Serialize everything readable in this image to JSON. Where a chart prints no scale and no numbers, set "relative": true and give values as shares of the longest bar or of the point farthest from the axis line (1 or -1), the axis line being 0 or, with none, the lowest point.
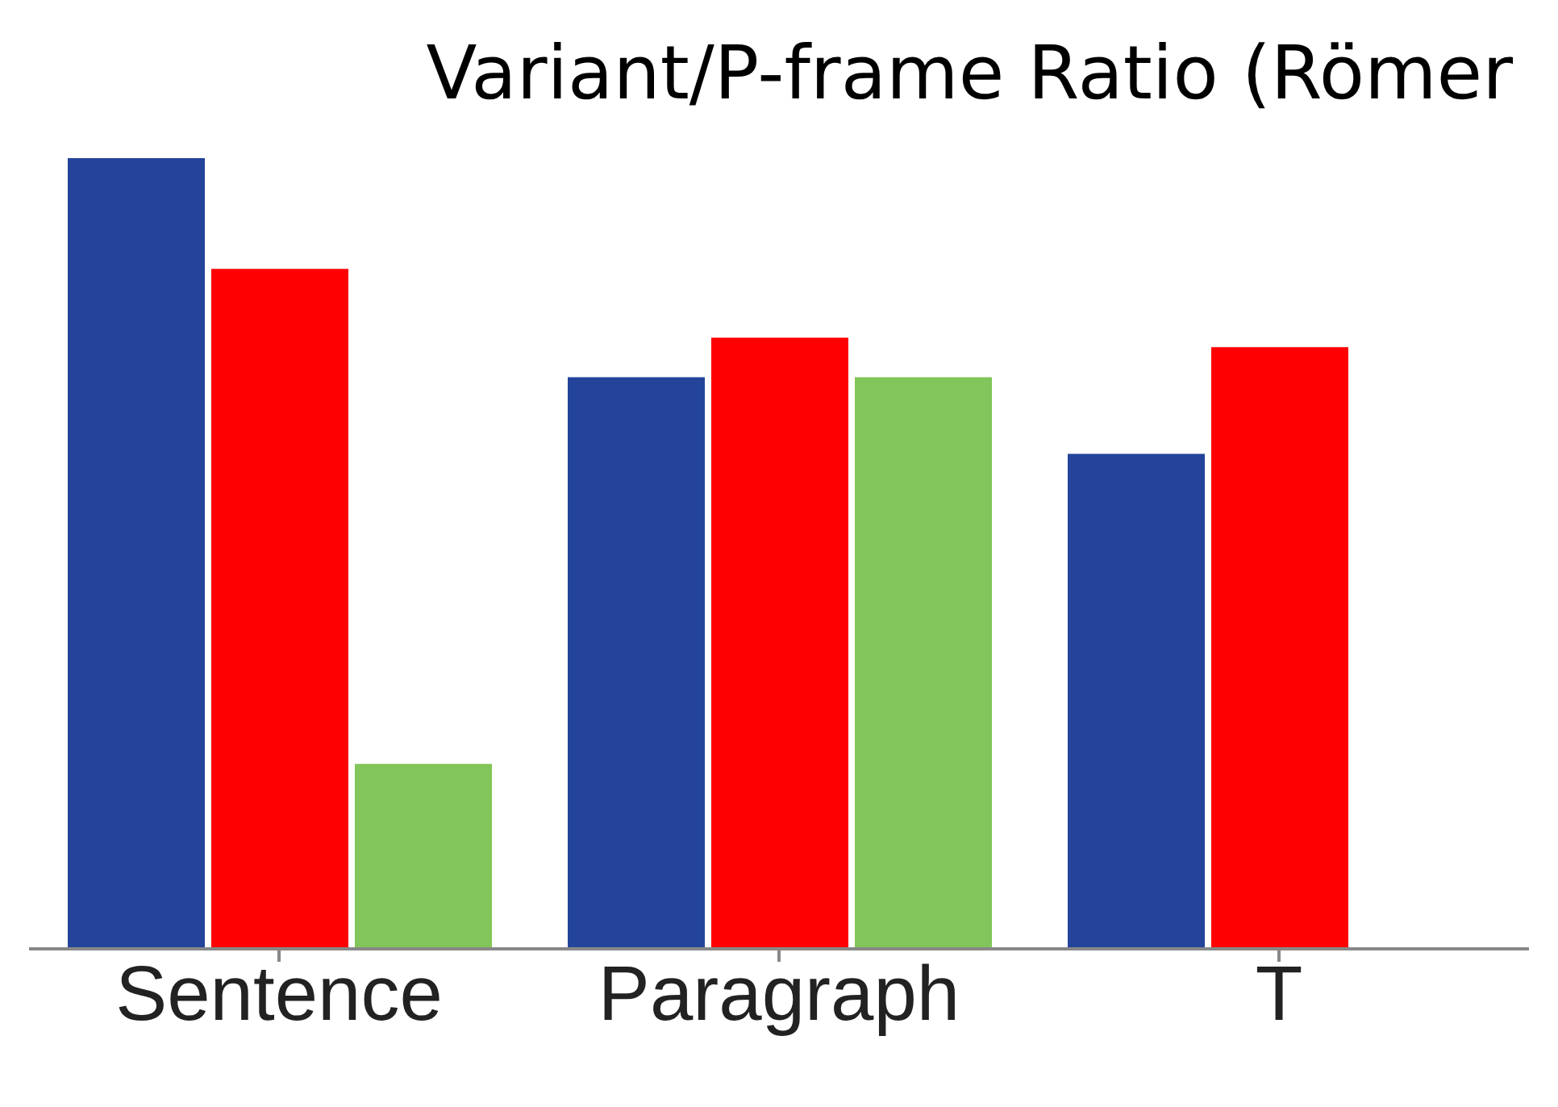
{
  "chart_data": {
    "type": "bar",
    "title": "Variant/P-frame Ratio (Römer",
    "relative": true,
    "categories": [
      "Sentence",
      "Paragraph",
      "T"
    ],
    "series": [
      {
        "color": "#23449a",
        "values": [
          1,
          0.723,
          0.626
        ]
      },
      {
        "color": "#ff0000",
        "values": [
          0.86,
          0.773,
          0.761
        ]
      },
      {
        "color": "#82c55a",
        "values": [
          0.234,
          0.723,
          null
        ]
      }
    ],
    "grid": false,
    "legend": false
  }
}
